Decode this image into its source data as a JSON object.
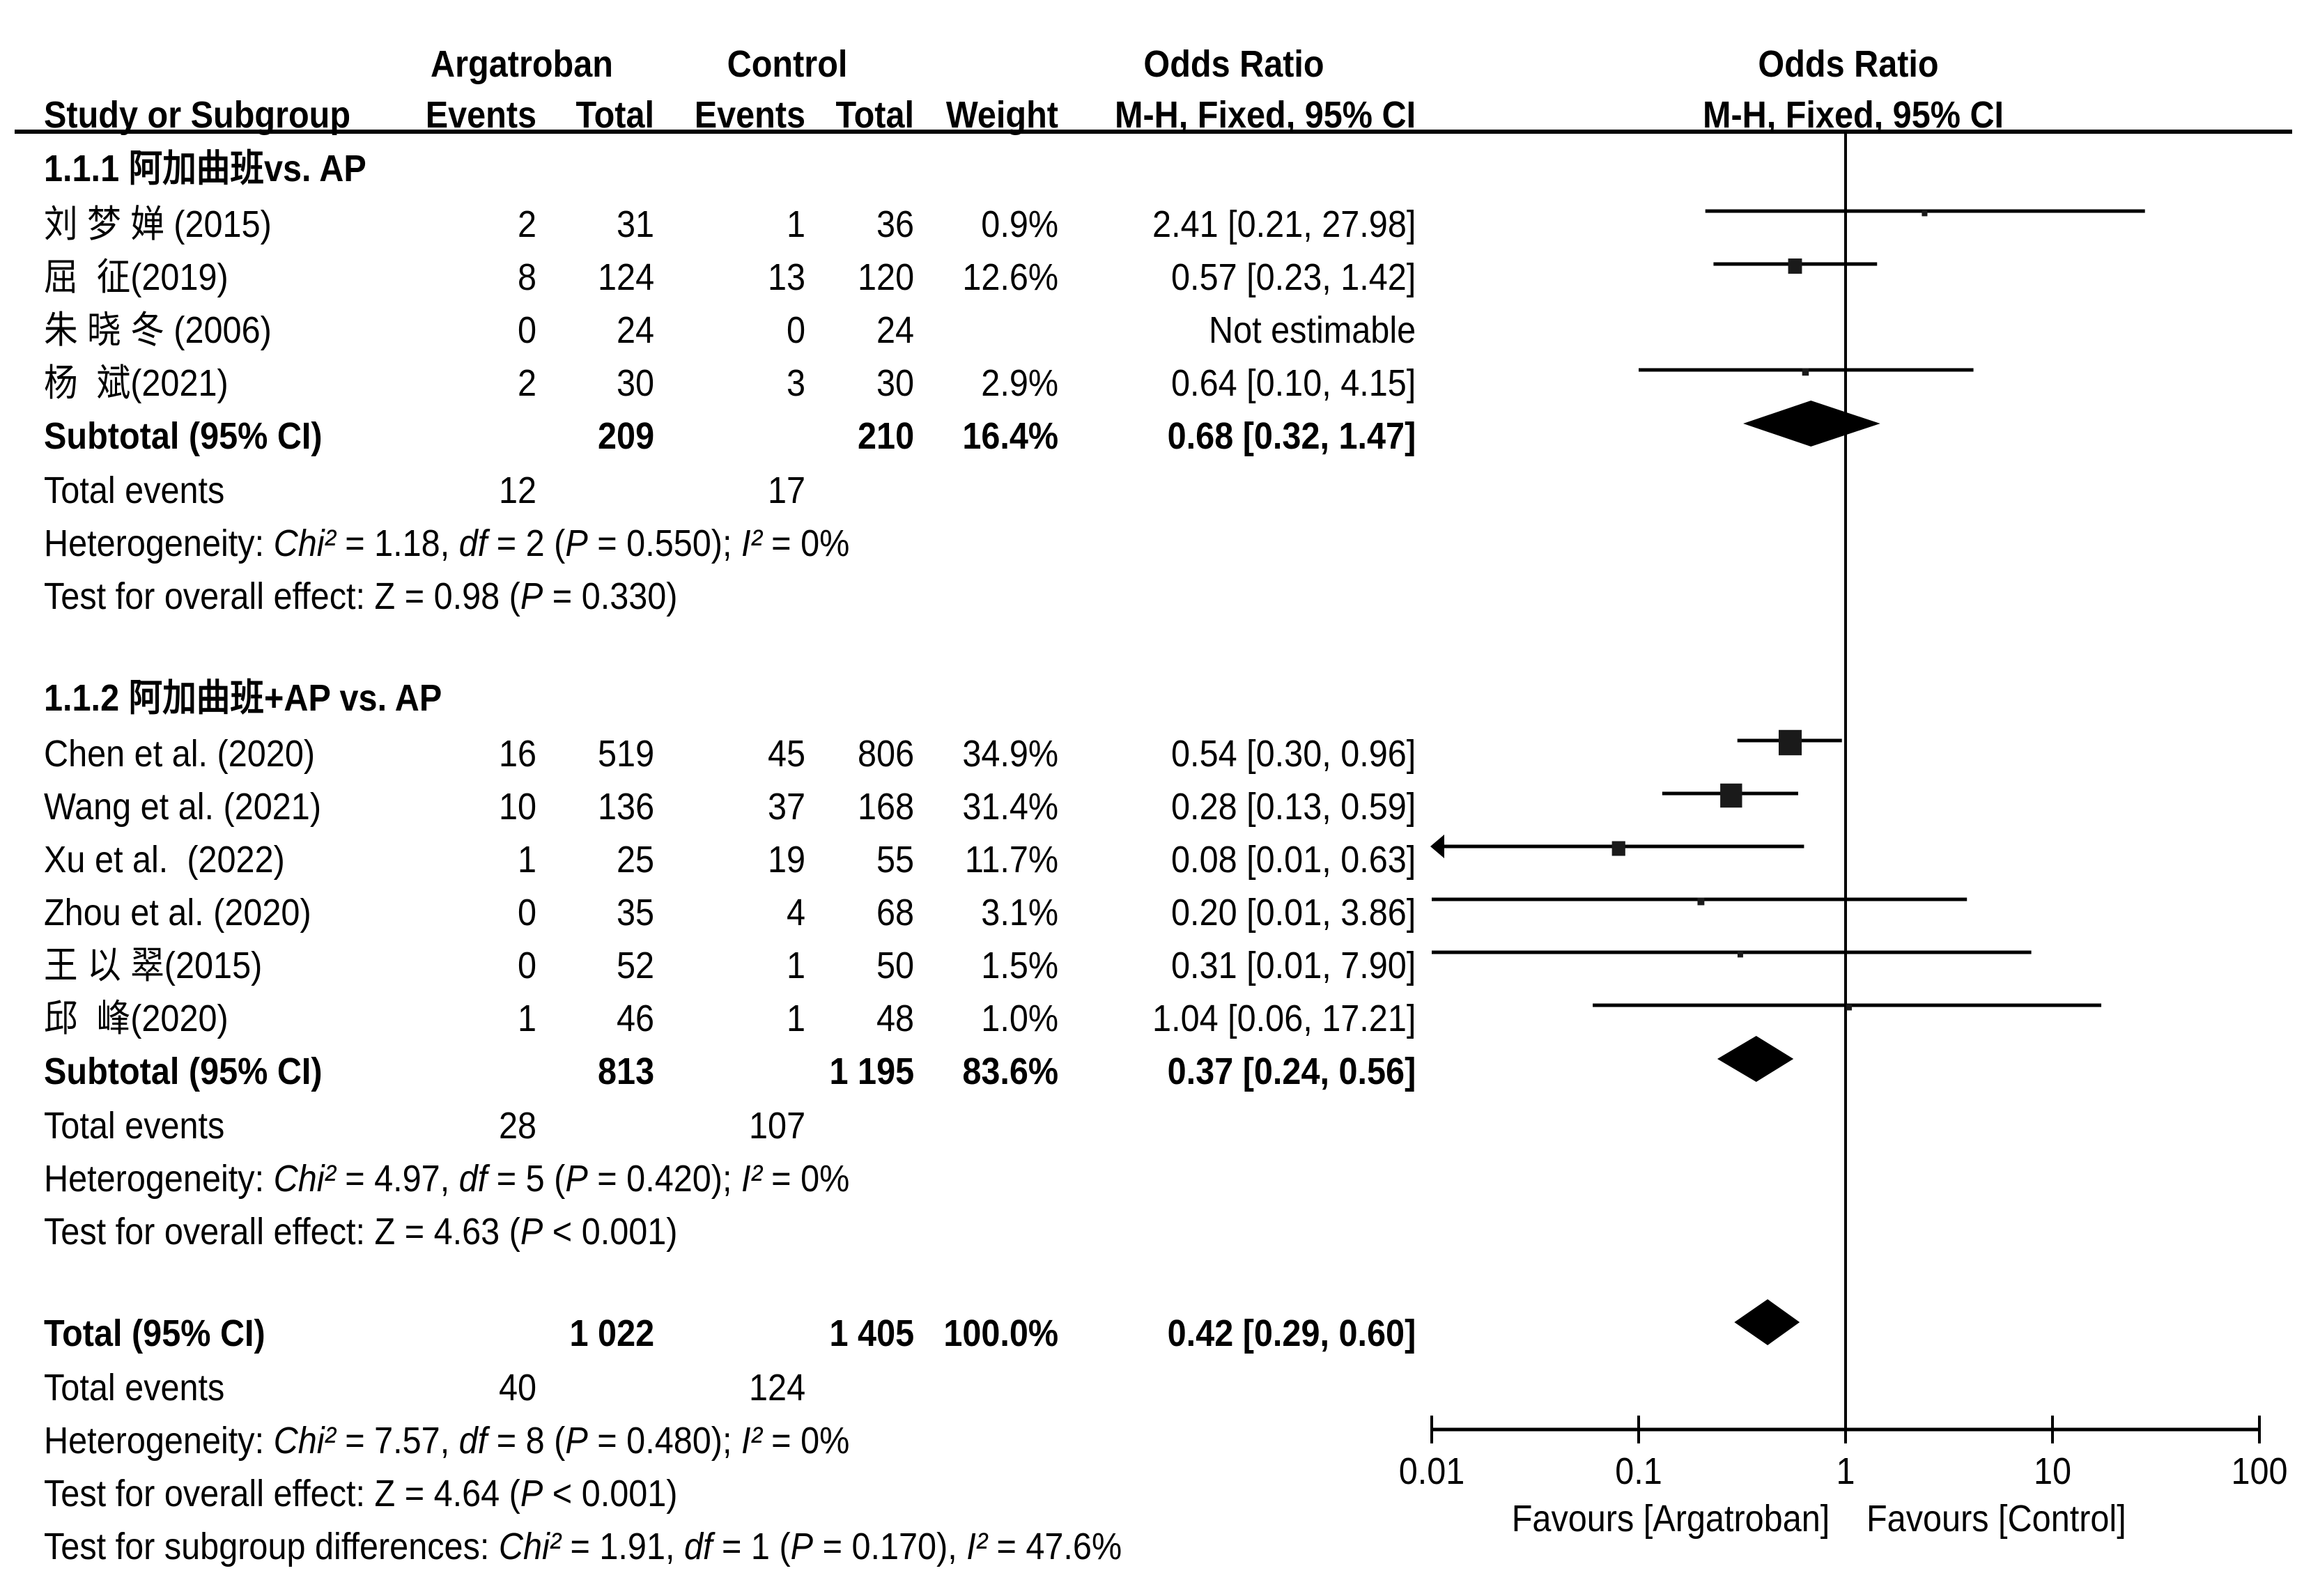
{
  "table": {
    "header": {
      "group_arg": "Argatroban",
      "group_ctrl": "Control",
      "or_title": "Odds Ratio",
      "study": "Study or Subgroup",
      "arg_events": "Events",
      "arg_total": "Total",
      "ctrl_events": "Events",
      "ctrl_total": "Total",
      "weight": "Weight",
      "or_method": "M-H, Fixed, 95% CI"
    },
    "subgroups": [
      {
        "title": "1.1.1 阿加曲班vs. AP",
        "studies": [
          {
            "name": "刘 梦 婵 (2015)",
            "arg_events": "2",
            "arg_total": "31",
            "ctrl_events": "1",
            "ctrl_total": "36",
            "weight": "0.9%",
            "or": "2.41 [0.21, 27.98]"
          },
          {
            "name": "屈  征(2019)",
            "arg_events": "8",
            "arg_total": "124",
            "ctrl_events": "13",
            "ctrl_total": "120",
            "weight": "12.6%",
            "or": "0.57 [0.23, 1.42]"
          },
          {
            "name": "朱 晓 冬 (2006)",
            "arg_events": "0",
            "arg_total": "24",
            "ctrl_events": "0",
            "ctrl_total": "24",
            "or": "Not estimable"
          },
          {
            "name": "杨  斌(2021)",
            "arg_events": "2",
            "arg_total": "30",
            "ctrl_events": "3",
            "ctrl_total": "30",
            "weight": "2.9%",
            "or": "0.64 [0.10, 4.15]"
          }
        ],
        "subtotal": {
          "label": "Subtotal (95% CI)",
          "arg_total": "209",
          "ctrl_total": "210",
          "weight": "16.4%",
          "or": "0.68 [0.32, 1.47]"
        },
        "total_events": {
          "label": "Total events",
          "arg": "12",
          "ctrl": "17"
        },
        "heterogeneity": [
          {
            "t": "Heterogeneity: "
          },
          {
            "t": "Chi²",
            "i": true
          },
          {
            "t": " = 1.18, "
          },
          {
            "t": "df",
            "i": true
          },
          {
            "t": " = 2 ("
          },
          {
            "t": "P",
            "i": true
          },
          {
            "t": " = 0.550); "
          },
          {
            "t": "I²",
            "i": true
          },
          {
            "t": " = 0%"
          }
        ],
        "overall_effect": [
          {
            "t": "Test for overall effect: Z = 0.98 ("
          },
          {
            "t": "P",
            "i": true
          },
          {
            "t": " = 0.330)"
          }
        ]
      },
      {
        "title": "1.1.2 阿加曲班+AP vs. AP",
        "studies": [
          {
            "name": "Chen et al. (2020)",
            "arg_events": "16",
            "arg_total": "519",
            "ctrl_events": "45",
            "ctrl_total": "806",
            "weight": "34.9%",
            "or": "0.54 [0.30, 0.96]"
          },
          {
            "name": "Wang et al. (2021)",
            "arg_events": "10",
            "arg_total": "136",
            "ctrl_events": "37",
            "ctrl_total": "168",
            "weight": "31.4%",
            "or": "0.28 [0.13, 0.59]"
          },
          {
            "name": "Xu et al.  (2022)",
            "arg_events": "1",
            "arg_total": "25",
            "ctrl_events": "19",
            "ctrl_total": "55",
            "weight": "11.7%",
            "or": "0.08 [0.01, 0.63]"
          },
          {
            "name": "Zhou et al. (2020)",
            "arg_events": "0",
            "arg_total": "35",
            "ctrl_events": "4",
            "ctrl_total": "68",
            "weight": "3.1%",
            "or": "0.20 [0.01, 3.86]"
          },
          {
            "name": "王 以 翠(2015)",
            "arg_events": "0",
            "arg_total": "52",
            "ctrl_events": "1",
            "ctrl_total": "50",
            "weight": "1.5%",
            "or": "0.31 [0.01, 7.90]"
          },
          {
            "name": "邱  峰(2020)",
            "arg_events": "1",
            "arg_total": "46",
            "ctrl_events": "1",
            "ctrl_total": "48",
            "weight": "1.0%",
            "or": "1.04 [0.06, 17.21]"
          }
        ],
        "subtotal": {
          "label": "Subtotal (95% CI)",
          "arg_total": "813",
          "ctrl_total": "1 195",
          "weight": "83.6%",
          "or": "0.37 [0.24, 0.56]"
        },
        "total_events": {
          "label": "Total events",
          "arg": "28",
          "ctrl": "107"
        },
        "heterogeneity": [
          {
            "t": "Heterogeneity: "
          },
          {
            "t": "Chi²",
            "i": true
          },
          {
            "t": " = 4.97, "
          },
          {
            "t": "df",
            "i": true
          },
          {
            "t": " = 5 ("
          },
          {
            "t": "P",
            "i": true
          },
          {
            "t": " = 0.420); "
          },
          {
            "t": "I²",
            "i": true
          },
          {
            "t": " = 0%"
          }
        ],
        "overall_effect": [
          {
            "t": "Test for overall effect: Z = 4.63 ("
          },
          {
            "t": "P",
            "i": true
          },
          {
            "t": " < 0.001)"
          }
        ]
      }
    ],
    "total": {
      "label": "Total (95% CI)",
      "arg_total": "1 022",
      "ctrl_total": "1 405",
      "weight": "100.0%",
      "or": "0.42 [0.29, 0.60]",
      "total_events": {
        "label": "Total events",
        "arg": "40",
        "ctrl": "124"
      },
      "heterogeneity": [
        {
          "t": "Heterogeneity: "
        },
        {
          "t": "Chi²",
          "i": true
        },
        {
          "t": " = 7.57, "
        },
        {
          "t": "df",
          "i": true
        },
        {
          "t": " = 8 ("
        },
        {
          "t": "P",
          "i": true
        },
        {
          "t": " = 0.480); "
        },
        {
          "t": "I²",
          "i": true
        },
        {
          "t": " = 0%"
        }
      ],
      "overall_effect": [
        {
          "t": "Test for overall effect: Z = 4.64 ("
        },
        {
          "t": "P",
          "i": true
        },
        {
          "t": " < 0.001)"
        }
      ],
      "subgroup_differences": [
        {
          "t": "Test for subgroup differences: "
        },
        {
          "t": "Chi²",
          "i": true
        },
        {
          "t": " = 1.91, "
        },
        {
          "t": "df",
          "i": true
        },
        {
          "t": " = 1 ("
        },
        {
          "t": "P",
          "i": true
        },
        {
          "t": " = 0.170), "
        },
        {
          "t": "I²",
          "i": true
        },
        {
          "t": " = 47.6%"
        }
      ]
    }
  },
  "chart_data": {
    "type": "scatter",
    "title": "Odds Ratio",
    "subtitle": "M-H, Fixed, 95% CI",
    "x_scale": "log",
    "xlim": [
      0.01,
      100
    ],
    "reference_line": 1,
    "grid": false,
    "x_ticks": [
      {
        "value": 0.01,
        "label": "0.01"
      },
      {
        "value": 0.1,
        "label": "0.1"
      },
      {
        "value": 1,
        "label": "1"
      },
      {
        "value": 10,
        "label": "10"
      },
      {
        "value": 100,
        "label": "100"
      }
    ],
    "xlabel_left": "Favours [Argatroban]",
    "xlabel_right": "Favours [Control]",
    "groups": [
      {
        "points": [
          {
            "or": 2.41,
            "lo": 0.21,
            "hi": 27.98,
            "weight": 0.9
          },
          {
            "or": 0.57,
            "lo": 0.23,
            "hi": 1.42,
            "weight": 12.6
          },
          null,
          {
            "or": 0.64,
            "lo": 0.1,
            "hi": 4.15,
            "weight": 2.9
          }
        ],
        "subtotal": {
          "or": 0.68,
          "lo": 0.32,
          "hi": 1.47
        }
      },
      {
        "points": [
          {
            "or": 0.54,
            "lo": 0.3,
            "hi": 0.96,
            "weight": 34.9
          },
          {
            "or": 0.28,
            "lo": 0.13,
            "hi": 0.59,
            "weight": 31.4
          },
          {
            "or": 0.08,
            "lo": 0.01,
            "hi": 0.63,
            "weight": 11.7,
            "arrow": "left"
          },
          {
            "or": 0.2,
            "lo": 0.01,
            "hi": 3.86,
            "weight": 3.1
          },
          {
            "or": 0.31,
            "lo": 0.01,
            "hi": 7.9,
            "weight": 1.5
          },
          {
            "or": 1.04,
            "lo": 0.06,
            "hi": 17.21,
            "weight": 1.0
          }
        ],
        "subtotal": {
          "or": 0.37,
          "lo": 0.24,
          "hi": 0.56
        }
      }
    ],
    "overall": {
      "or": 0.42,
      "lo": 0.29,
      "hi": 0.6
    }
  }
}
